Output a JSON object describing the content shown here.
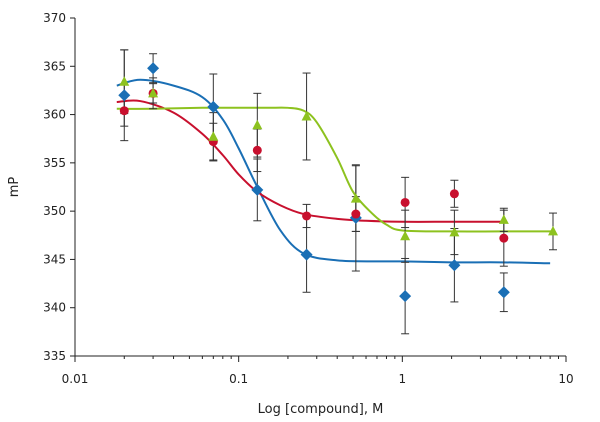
{
  "chart_data": {
    "type": "scatter",
    "xlabel": "Log [compound], M",
    "ylabel": "mP",
    "xscale": "log",
    "xlim": [
      0.01,
      10
    ],
    "ylim": [
      335,
      370
    ],
    "x_ticks": [
      0.01,
      0.1,
      1,
      10
    ],
    "x_tick_labels": [
      "0.01",
      "0.1",
      "1",
      "10"
    ],
    "y_ticks": [
      335,
      340,
      345,
      350,
      355,
      360,
      365,
      370
    ],
    "y_tick_labels": [
      "335",
      "340",
      "345",
      "350",
      "355",
      "360",
      "365",
      "370"
    ],
    "grid": false,
    "legend": "none",
    "series": [
      {
        "marker": "diamond",
        "color": "#1a6fb5",
        "x": [
          0.02,
          0.03,
          0.07,
          0.13,
          0.26,
          0.52,
          1.04,
          2.08,
          4.17
        ],
        "y": [
          362.0,
          364.8,
          360.8,
          352.2,
          345.5,
          349.3,
          341.2,
          344.4,
          341.6
        ],
        "yerr": [
          4.7,
          1.5,
          3.4,
          3.2,
          3.9,
          5.5,
          3.9,
          3.8,
          2.0
        ],
        "fit": {
          "x": [
            0.018,
            0.025,
            0.04,
            0.06,
            0.08,
            0.1,
            0.13,
            0.18,
            0.25,
            0.4,
            0.7,
            1.0,
            2.0,
            4.0,
            8.0
          ],
          "y": [
            363.0,
            363.6,
            363.0,
            361.8,
            359.5,
            356.5,
            352.5,
            348.0,
            345.6,
            344.9,
            344.8,
            344.8,
            344.7,
            344.7,
            344.6
          ]
        }
      },
      {
        "marker": "circle",
        "color": "#c8102e",
        "x": [
          0.02,
          0.03,
          0.07,
          0.13,
          0.26,
          0.52,
          1.04,
          2.08,
          4.17
        ],
        "y": [
          360.4,
          362.2,
          357.2,
          356.3,
          349.5,
          349.7,
          350.9,
          351.8,
          347.2
        ],
        "yerr": [
          1.6,
          1.0,
          1.9,
          2.2,
          1.2,
          1.8,
          2.6,
          1.4,
          2.9
        ],
        "fit": {
          "x": [
            0.018,
            0.025,
            0.04,
            0.06,
            0.08,
            0.1,
            0.13,
            0.18,
            0.25,
            0.4,
            0.6,
            1.0,
            2.0,
            4.2
          ],
          "y": [
            361.3,
            361.4,
            360.2,
            358.0,
            355.8,
            353.8,
            352.0,
            350.6,
            349.7,
            349.2,
            349.0,
            348.9,
            348.9,
            348.9
          ]
        }
      },
      {
        "marker": "triangle",
        "color": "#8dc21f",
        "x": [
          0.02,
          0.03,
          0.07,
          0.13,
          0.26,
          0.52,
          1.04,
          2.08,
          4.17,
          8.33
        ],
        "y": [
          363.4,
          362.2,
          357.7,
          358.9,
          359.8,
          351.3,
          347.4,
          347.8,
          349.1,
          347.9
        ],
        "yerr": [
          3.3,
          1.6,
          2.5,
          3.3,
          4.5,
          3.4,
          2.7,
          2.3,
          1.2,
          1.9
        ],
        "fit": {
          "x": [
            0.018,
            0.03,
            0.06,
            0.1,
            0.15,
            0.2,
            0.25,
            0.3,
            0.4,
            0.5,
            0.65,
            0.8,
            1.0,
            2.0,
            4.0,
            8.3
          ],
          "y": [
            360.6,
            360.6,
            360.7,
            360.7,
            360.7,
            360.7,
            360.4,
            359.2,
            355.5,
            352.0,
            349.8,
            348.6,
            348.0,
            347.9,
            347.9,
            347.9
          ]
        }
      }
    ]
  }
}
